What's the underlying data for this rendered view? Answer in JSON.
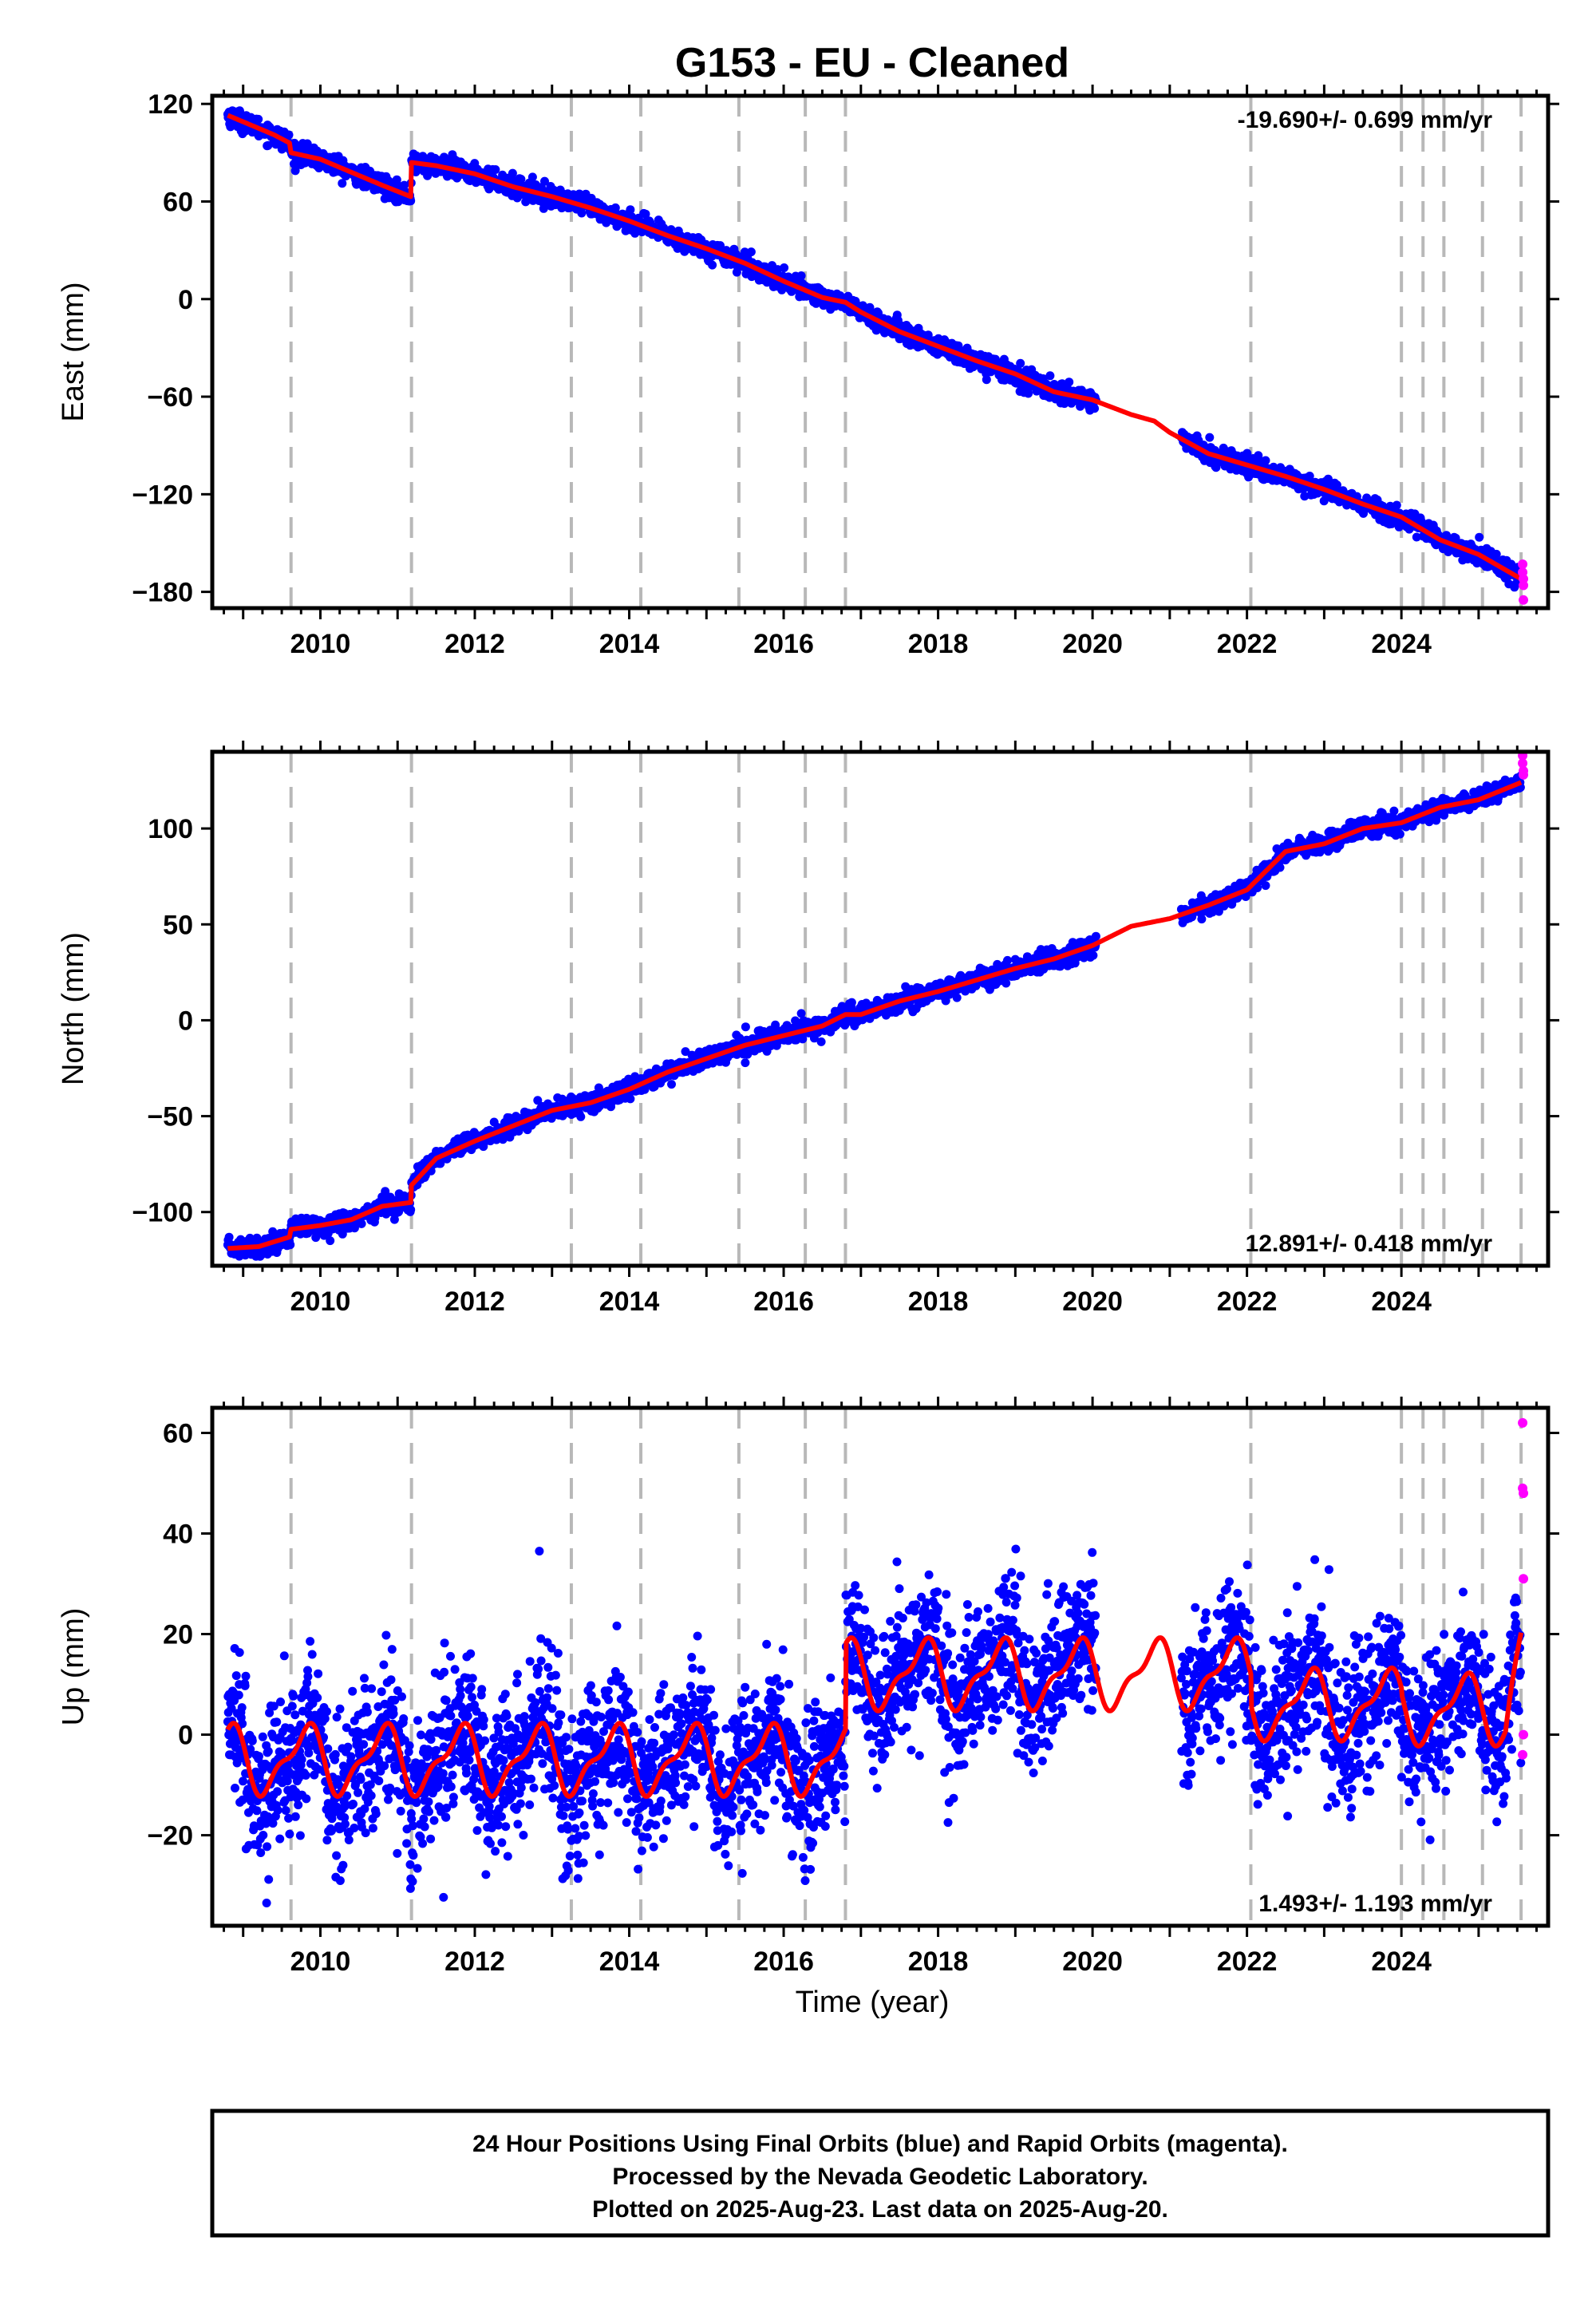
{
  "title": "G153  - EU - Cleaned",
  "xlabel": "Time (year)",
  "footer": {
    "lines": [
      "24 Hour Positions Using Final Orbits (blue) and Rapid Orbits (magenta).",
      "Processed by the Nevada Geodetic Laboratory.",
      "Plotted on 2025-Aug-23. Last data on 2025-Aug-20."
    ]
  },
  "colors": {
    "final_points": "#0000ff",
    "rapid_points": "#ff00ff",
    "model_line": "#ff0000",
    "event_lines": "#b8b8b8"
  },
  "chart_data": [
    {
      "type": "scatter",
      "component": "east",
      "ylabel": "East (mm)",
      "xlim": [
        2008.6,
        2025.9
      ],
      "ylim": [
        -190,
        125
      ],
      "xticks": [
        2010,
        2012,
        2014,
        2016,
        2018,
        2020,
        2022,
        2024
      ],
      "yticks": [
        120,
        60,
        0,
        -60,
        -120,
        -180
      ],
      "rate_text": "-19.690+/- 0.699 mm/yr",
      "rate_position": "top-right",
      "grid": false,
      "event_lines_x": [
        2009.62,
        2011.18,
        2013.25,
        2014.15,
        2015.42,
        2016.28,
        2016.8,
        2022.05,
        2024.0,
        2024.28,
        2024.55,
        2025.05,
        2025.55
      ],
      "model": {
        "x": [
          2008.8,
          2009.0,
          2009.2,
          2009.4,
          2009.6,
          2009.62,
          2010.0,
          2010.4,
          2010.8,
          2011.17,
          2011.18,
          2011.5,
          2012.0,
          2012.5,
          2013.0,
          2013.5,
          2014.0,
          2014.5,
          2015.0,
          2015.5,
          2016.0,
          2016.5,
          2016.8,
          2017.0,
          2017.5,
          2018.0,
          2018.5,
          2019.0,
          2019.5,
          2020.0,
          2020.5,
          2020.8,
          2021.0,
          2021.5,
          2022.0,
          2022.5,
          2023.0,
          2023.5,
          2024.0,
          2024.5,
          2025.0,
          2025.55
        ],
        "y": [
          113,
          109,
          105,
          101,
          96,
          90,
          86,
          78,
          70,
          63,
          84,
          82,
          77,
          69,
          63,
          56,
          48,
          39,
          31,
          22,
          11,
          1,
          -2,
          -8,
          -20,
          -29,
          -38,
          -46,
          -57,
          -62,
          -71,
          -75,
          -82,
          -95,
          -102,
          -109,
          -117,
          -126,
          -134,
          -148,
          -157,
          -172
        ]
      },
      "final_series": {
        "name": "Final Orbits",
        "segments": [
          [
            2008.8,
            2020.05
          ],
          [
            2021.15,
            2025.55
          ]
        ],
        "noise_mm": 3
      },
      "rapid_series": {
        "name": "Rapid Orbits",
        "x": [
          2025.57,
          2025.57,
          2025.58,
          2025.58,
          2025.58
        ],
        "y": [
          -163,
          -168,
          -172,
          -176,
          -185
        ]
      }
    },
    {
      "type": "scatter",
      "component": "north",
      "ylabel": "North (mm)",
      "xlim": [
        2008.6,
        2025.9
      ],
      "ylim": [
        -128,
        140
      ],
      "xticks": [
        2010,
        2012,
        2014,
        2016,
        2018,
        2020,
        2022,
        2024
      ],
      "yticks": [
        100,
        50,
        0,
        -50,
        -100
      ],
      "rate_text": "12.891+/- 0.418 mm/yr",
      "rate_position": "bottom-right",
      "grid": false,
      "event_lines_x": [
        2009.62,
        2011.18,
        2013.25,
        2014.15,
        2015.42,
        2016.28,
        2016.8,
        2022.05,
        2024.0,
        2024.28,
        2024.55,
        2025.05,
        2025.55
      ],
      "model": {
        "x": [
          2008.8,
          2009.2,
          2009.6,
          2009.62,
          2010.0,
          2010.4,
          2010.8,
          2011.17,
          2011.18,
          2011.5,
          2012.0,
          2012.5,
          2013.0,
          2013.5,
          2014.0,
          2014.5,
          2015.0,
          2015.5,
          2016.0,
          2016.5,
          2016.8,
          2017.0,
          2017.5,
          2018.0,
          2018.5,
          2019.0,
          2019.5,
          2020.0,
          2020.5,
          2021.0,
          2021.5,
          2022.0,
          2022.5,
          2023.0,
          2023.5,
          2024.0,
          2024.5,
          2025.0,
          2025.55
        ],
        "y": [
          -119,
          -118,
          -113,
          -109,
          -107,
          -104,
          -97,
          -95,
          -86,
          -72,
          -63,
          -55,
          -47,
          -43,
          -36,
          -27,
          -20,
          -13,
          -8,
          -3,
          3,
          3,
          10,
          15,
          21,
          27,
          32,
          39,
          49,
          53,
          60,
          68,
          88,
          92,
          100,
          103,
          111,
          115,
          124
        ]
      },
      "final_series": {
        "name": "Final Orbits",
        "segments": [
          [
            2008.8,
            2020.05
          ],
          [
            2021.15,
            2025.55
          ]
        ],
        "noise_mm": 2.5
      },
      "rapid_series": {
        "name": "Rapid Orbits",
        "x": [
          2025.57,
          2025.57,
          2025.58,
          2025.58
        ],
        "y": [
          138,
          134,
          130,
          128
        ]
      }
    },
    {
      "type": "scatter",
      "component": "up",
      "ylabel": "Up (mm)",
      "xlim": [
        2008.6,
        2025.9
      ],
      "ylim": [
        -38,
        65
      ],
      "xticks": [
        2010,
        2012,
        2014,
        2016,
        2018,
        2020,
        2022,
        2024
      ],
      "yticks": [
        60,
        40,
        20,
        0,
        -20
      ],
      "rate_text": "1.493+/- 1.193 mm/yr",
      "rate_position": "bottom-right",
      "grid": false,
      "event_lines_x": [
        2009.62,
        2011.18,
        2013.25,
        2014.15,
        2015.42,
        2016.28,
        2016.8,
        2022.05,
        2024.0,
        2024.28,
        2024.55,
        2025.05,
        2025.55
      ],
      "model": {
        "annual_amplitude_mm": 6,
        "offsets": [
          {
            "from": 2008.8,
            "to": 2016.8,
            "mean": -5
          },
          {
            "from": 2016.8,
            "to": 2022.05,
            "mean": 12
          },
          {
            "from": 2022.05,
            "to": 2024.0,
            "mean": 6
          },
          {
            "from": 2024.0,
            "to": 2025.55,
            "mean": 5
          }
        ],
        "end_value": 22
      },
      "final_series": {
        "name": "Final Orbits",
        "segments": [
          [
            2008.8,
            2020.05
          ],
          [
            2021.15,
            2025.55
          ]
        ],
        "noise_mm": 7
      },
      "rapid_series": {
        "name": "Rapid Orbits",
        "x": [
          2025.57,
          2025.57,
          2025.58,
          2025.58,
          2025.58,
          2025.57
        ],
        "y": [
          62,
          49,
          48,
          31,
          0,
          -4
        ]
      }
    }
  ]
}
